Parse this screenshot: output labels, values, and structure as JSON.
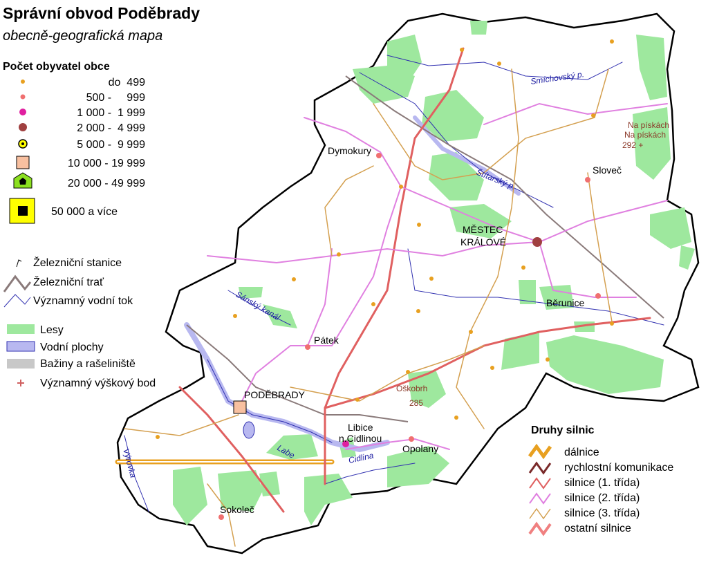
{
  "header": {
    "title": "Správní obvod Poděbrady",
    "subtitle": "obecně-geografická mapa"
  },
  "population_legend": {
    "title": "Počet obyvatel obce",
    "items": [
      "do  499",
      "500 -     999",
      "1 000 -  1 999",
      "2 000 -  4 999",
      "5 000 -  9 999",
      "10 000 - 19 999",
      "20 000 - 49 999",
      "50 000 a více"
    ]
  },
  "feature_legend": {
    "items": [
      "Železniční stanice",
      "Železniční trať",
      "Významný vodní tok",
      "Lesy",
      "Vodní plochy",
      "Bažiny a rašeliniště",
      "Významný výškový bod"
    ]
  },
  "road_legend": {
    "title": "Druhy silnic",
    "items": [
      "dálnice",
      "rychlostní komunikace",
      "silnice (1. třída)",
      "silnice (2. třída)",
      "silnice (3. třída)",
      "ostatní silnice"
    ]
  },
  "places": [
    "Dymokury",
    "Sloveč",
    "MĚSTEC",
    "KRÁLOVÉ",
    "Běrunice",
    "Pátek",
    "PODĚBRADY",
    "Libice",
    "n.Cidlinou",
    "Opolany",
    "Sokoleč"
  ],
  "heights": [
    {
      "name": "Oškobrh",
      "height": "285"
    },
    {
      "name": "Na pískách",
      "height": "292 +"
    }
  ],
  "waters": [
    "Smíchovský p.",
    "Štítarský p.",
    "Sánský kanál",
    "Labe",
    "Cidlina",
    "Výrovka"
  ]
}
